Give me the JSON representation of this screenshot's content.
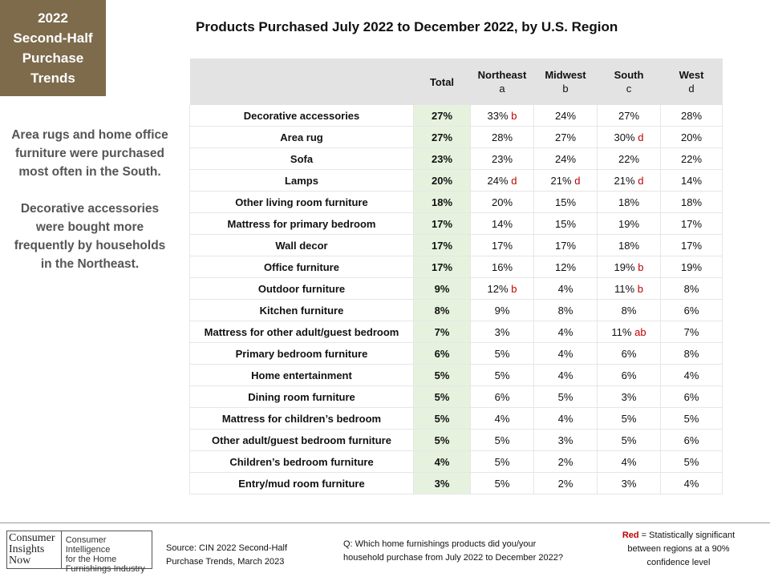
{
  "badge": {
    "lines": [
      "2022",
      "Second-Half",
      "Purchase",
      "Trends"
    ]
  },
  "title": "Products Purchased  July 2022 to December 2022, by U.S. Region",
  "notes": [
    "Area rugs and home office furniture were purchased most often in the South.",
    "Decorative accessories were bought more frequently by households in the Northeast."
  ],
  "table": {
    "columns": [
      {
        "label": "Total",
        "sub": ""
      },
      {
        "label": "Northeast",
        "sub": "a"
      },
      {
        "label": "Midwest",
        "sub": "b"
      },
      {
        "label": "South",
        "sub": "c"
      },
      {
        "label": "West",
        "sub": "d"
      }
    ],
    "rows": [
      {
        "label": "Decorative accessories",
        "total": "27%",
        "cells": [
          [
            "33%",
            "b"
          ],
          [
            "24%",
            ""
          ],
          [
            "27%",
            ""
          ],
          [
            "28%",
            ""
          ]
        ]
      },
      {
        "label": "Area rug",
        "total": "27%",
        "cells": [
          [
            "28%",
            ""
          ],
          [
            "27%",
            ""
          ],
          [
            "30%",
            "d"
          ],
          [
            "20%",
            ""
          ]
        ]
      },
      {
        "label": "Sofa",
        "total": "23%",
        "cells": [
          [
            "23%",
            ""
          ],
          [
            "24%",
            ""
          ],
          [
            "22%",
            ""
          ],
          [
            "22%",
            ""
          ]
        ]
      },
      {
        "label": "Lamps",
        "total": "20%",
        "cells": [
          [
            "24%",
            "d"
          ],
          [
            "21%",
            "d"
          ],
          [
            "21%",
            "d"
          ],
          [
            "14%",
            ""
          ]
        ]
      },
      {
        "label": "Other living room furniture",
        "total": "18%",
        "sep": true,
        "cells": [
          [
            "20%",
            ""
          ],
          [
            "15%",
            ""
          ],
          [
            "18%",
            ""
          ],
          [
            "18%",
            ""
          ]
        ]
      },
      {
        "label": "Mattress for primary bedroom",
        "total": "17%",
        "cells": [
          [
            "14%",
            ""
          ],
          [
            "15%",
            ""
          ],
          [
            "19%",
            ""
          ],
          [
            "17%",
            ""
          ]
        ]
      },
      {
        "label": "Wall decor",
        "total": "17%",
        "cells": [
          [
            "17%",
            ""
          ],
          [
            "17%",
            ""
          ],
          [
            "18%",
            ""
          ],
          [
            "17%",
            ""
          ]
        ]
      },
      {
        "label": "Office furniture",
        "total": "17%",
        "cells": [
          [
            "16%",
            ""
          ],
          [
            "12%",
            ""
          ],
          [
            "19%",
            "b"
          ],
          [
            "19%",
            ""
          ]
        ]
      },
      {
        "label": "Outdoor furniture",
        "total": "9%",
        "sep": true,
        "cells": [
          [
            "12%",
            "b"
          ],
          [
            "4%",
            ""
          ],
          [
            "11%",
            "b"
          ],
          [
            "8%",
            ""
          ]
        ]
      },
      {
        "label": "Kitchen furniture",
        "total": "8%",
        "cells": [
          [
            "9%",
            ""
          ],
          [
            "8%",
            ""
          ],
          [
            "8%",
            ""
          ],
          [
            "6%",
            ""
          ]
        ]
      },
      {
        "label": "Mattress for other adult/guest bedroom",
        "total": "7%",
        "cells": [
          [
            "3%",
            ""
          ],
          [
            "4%",
            ""
          ],
          [
            "11%",
            "ab"
          ],
          [
            "7%",
            ""
          ]
        ]
      },
      {
        "label": "Primary bedroom furniture",
        "total": "6%",
        "cells": [
          [
            "5%",
            ""
          ],
          [
            "4%",
            ""
          ],
          [
            "6%",
            ""
          ],
          [
            "8%",
            ""
          ]
        ]
      },
      {
        "label": "Home entertainment",
        "total": "5%",
        "sep": true,
        "cells": [
          [
            "5%",
            ""
          ],
          [
            "4%",
            ""
          ],
          [
            "6%",
            ""
          ],
          [
            "4%",
            ""
          ]
        ]
      },
      {
        "label": "Dining room furniture",
        "total": "5%",
        "cells": [
          [
            "6%",
            ""
          ],
          [
            "5%",
            ""
          ],
          [
            "3%",
            ""
          ],
          [
            "6%",
            ""
          ]
        ]
      },
      {
        "label": "Mattress for children’s bedroom",
        "total": "5%",
        "cells": [
          [
            "4%",
            ""
          ],
          [
            "4%",
            ""
          ],
          [
            "5%",
            ""
          ],
          [
            "5%",
            ""
          ]
        ]
      },
      {
        "label": "Other adult/guest bedroom furniture",
        "total": "5%",
        "cells": [
          [
            "5%",
            ""
          ],
          [
            "3%",
            ""
          ],
          [
            "5%",
            ""
          ],
          [
            "6%",
            ""
          ]
        ]
      },
      {
        "label": "Children’s bedroom furniture",
        "total": "4%",
        "cells": [
          [
            "5%",
            ""
          ],
          [
            "2%",
            ""
          ],
          [
            "4%",
            ""
          ],
          [
            "5%",
            ""
          ]
        ]
      },
      {
        "label": "Entry/mud room furniture",
        "total": "3%",
        "cells": [
          [
            "5%",
            ""
          ],
          [
            "2%",
            ""
          ],
          [
            "3%",
            ""
          ],
          [
            "4%",
            ""
          ]
        ]
      }
    ]
  },
  "footer": {
    "logo_left": [
      "Consumer",
      "Insights",
      "Now"
    ],
    "logo_right": [
      "Consumer Intelligence",
      "for the Home",
      "Furnishings Industry"
    ],
    "source": [
      "Source:  CIN 2022 Second-Half",
      "Purchase Trends, March 2023"
    ],
    "question": [
      "Q: Which home furnishings products did you/your",
      "household purchase from July 2022 to December  2022?"
    ],
    "legend_red": "Red",
    "legend_rest": " = Statistically significant between  regions at a 90% confidence level"
  },
  "colors": {
    "badge": "#7d6b4c",
    "total_col": "#e6f2de",
    "header": "#e3e3e3",
    "significant": "#c00000"
  }
}
